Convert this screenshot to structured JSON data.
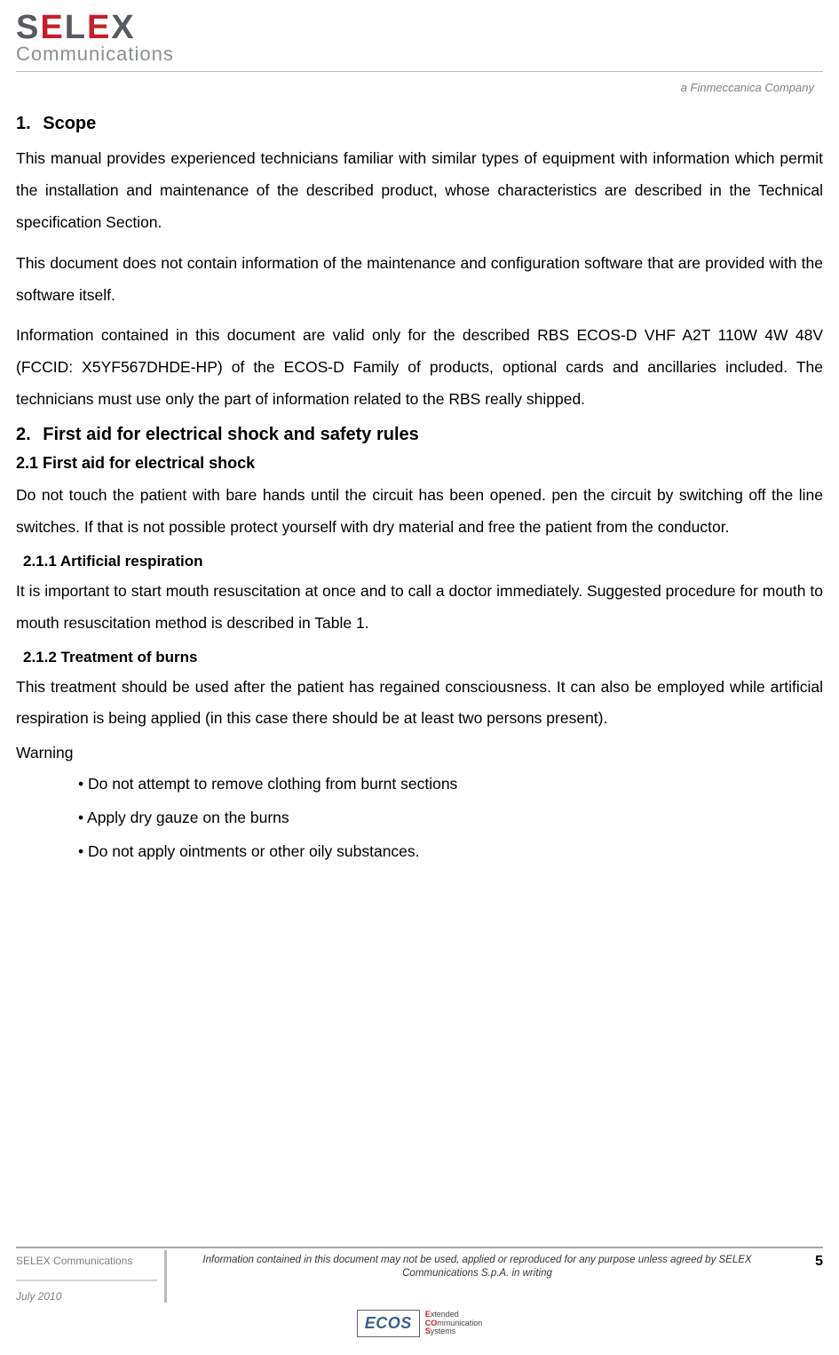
{
  "header": {
    "logo_text_1": "S",
    "logo_text_2": "E",
    "logo_text_3": "L",
    "logo_text_4": "E",
    "logo_text_5": "X",
    "logo_sub": "Communications",
    "company_tag": "a Finmeccanica Company"
  },
  "sections": {
    "s1_num": "1.",
    "s1_title": "Scope",
    "s1_p1": "This manual provides experienced technicians familiar with similar types of equipment with information which permit the installation and maintenance of the described product, whose characteristics are described in the Technical specification Section.",
    "s1_p2": "This document does not contain information of the maintenance and configuration software that are provided with the software itself.",
    "s1_p3": "Information contained in this document are valid only for the described RBS ECOS-D VHF A2T 110W 4W 48V (FCCID: X5YF567DHDE-HP) of the ECOS-D Family of products, optional cards and ancillaries included. The technicians must use only the part of information related to the RBS really shipped.",
    "s2_num": "2.",
    "s2_title": "First aid for electrical shock and safety rules",
    "s21_title": "2.1 First aid for electrical shock",
    "s21_p1": "Do not touch the patient with bare hands until the circuit has been opened. pen the circuit by switching off the line switches. If that is not possible protect yourself with dry material and free the patient from the conductor.",
    "s211_title": "2.1.1  Artificial respiration",
    "s211_p1": "It is important to start mouth resuscitation at once and to call a doctor immediately. Suggested procedure for mouth to mouth resuscitation method is described in Table 1.",
    "s212_title": "2.1.2  Treatment of burns",
    "s212_p1": "This treatment should be used after the patient has regained consciousness. It can also be employed while artificial respiration is being applied (in this case there should be at least two persons present).",
    "warning": "Warning",
    "b1": "• Do not attempt to remove clothing from burnt sections",
    "b2": "• Apply dry gauze on the burns",
    "b3": "• Do not apply ointments or other oily substances."
  },
  "footer": {
    "left_name": "SELEX Communications",
    "date": "July 2010",
    "disclaimer": "Information contained in this document may not be used, applied or reproduced for any purpose unless agreed by SELEX Communications S.p.A. in writing",
    "page": "5",
    "ecos_label": "ECOS",
    "ecos_line1a": "E",
    "ecos_line1b": "xtended",
    "ecos_line2a": "CO",
    "ecos_line2b": "mmunication",
    "ecos_line3a": "S",
    "ecos_line3b": "ystems"
  },
  "colors": {
    "accent_red": "#c42029",
    "grey_text": "#7c8083",
    "dark_grey": "#555b60",
    "rule": "#b8bbbd"
  },
  "typography": {
    "body_fontsize_pt": 13,
    "heading_fontsize_pt": 15,
    "line_height": 2.05,
    "font_family": "Arial"
  }
}
